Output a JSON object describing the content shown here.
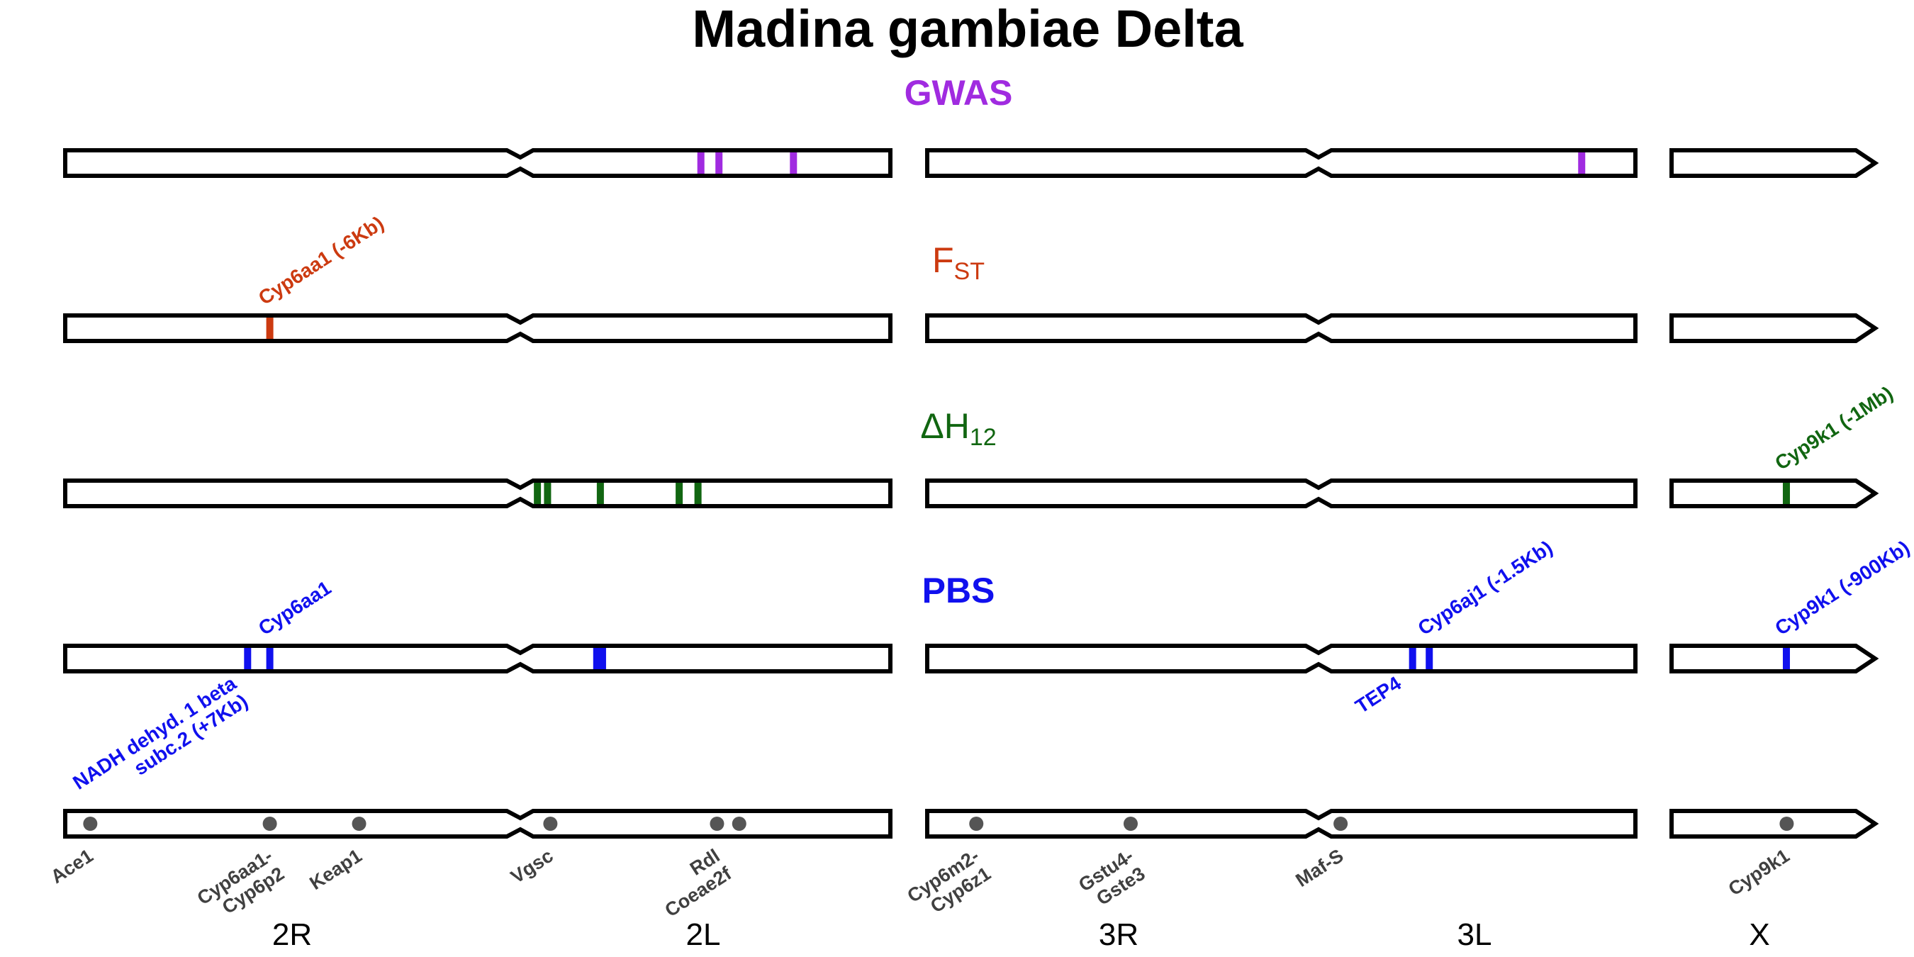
{
  "title": "Madina gambiae Delta",
  "chromosome_arms": [
    "2R",
    "2L",
    "3R",
    "3L",
    "X"
  ],
  "tracks": [
    {
      "id": "gwas",
      "label": "GWAS",
      "label_sub": "",
      "label_bold": true,
      "color": "#a02be0",
      "markers": [
        {
          "arm": "2L",
          "pos_mb": 23.2
        },
        {
          "arm": "2L",
          "pos_mb": 25.7
        },
        {
          "arm": "2L",
          "pos_mb": 36.0
        },
        {
          "arm": "3L",
          "pos_mb": 34.5
        }
      ],
      "hit_labels": []
    },
    {
      "id": "fst",
      "label": "F",
      "label_sub": "ST",
      "label_bold": false,
      "color": "#cc3a10",
      "markers": [
        {
          "arm": "2R",
          "pos_mb": 28.49
        }
      ],
      "hit_labels": [
        {
          "text": "Cyp6aa1 (-6Kb)",
          "arm": "2R",
          "pos_mb": 28.49,
          "side": "above"
        }
      ]
    },
    {
      "id": "h12",
      "label": "ΔH",
      "label_sub": "12",
      "label_bold": false,
      "color": "#116611",
      "markers": [
        {
          "arm": "2L",
          "pos_mb": 0.6
        },
        {
          "arm": "2L",
          "pos_mb": 2.0
        },
        {
          "arm": "2L",
          "pos_mb": 9.3
        },
        {
          "arm": "2L",
          "pos_mb": 20.2
        },
        {
          "arm": "2L",
          "pos_mb": 22.8
        },
        {
          "arm": "X",
          "pos_mb": 15.2
        }
      ],
      "hit_labels": [
        {
          "text": "Cyp9k1 (-1Mb)",
          "arm": "X",
          "pos_mb": 15.2,
          "side": "above"
        }
      ]
    },
    {
      "id": "pbs",
      "label": "PBS",
      "label_sub": "",
      "label_bold": true,
      "color": "#1010ee",
      "markers": [
        {
          "arm": "2R",
          "pos_mb": 25.4
        },
        {
          "arm": "2R",
          "pos_mb": 28.49
        },
        {
          "arm": "2L",
          "pos_mb": 8.8
        },
        {
          "arm": "2L",
          "pos_mb": 9.2
        },
        {
          "arm": "2L",
          "pos_mb": 9.6
        },
        {
          "arm": "3L",
          "pos_mb": 11.2
        },
        {
          "arm": "3L",
          "pos_mb": 13.5
        },
        {
          "arm": "X",
          "pos_mb": 15.2
        }
      ],
      "hit_labels": [
        {
          "text": "Cyp6aa1",
          "arm": "2R",
          "pos_mb": 28.49,
          "side": "above"
        },
        {
          "text": "Cyp6aj1 (-1.5Kb)",
          "arm": "3L",
          "pos_mb": 13.5,
          "side": "above"
        },
        {
          "text": "Cyp9k1 (-900Kb)",
          "arm": "X",
          "pos_mb": 15.2,
          "side": "above"
        },
        {
          "text": "NADH dehyd. 1 beta subc.2 (+7Kb)",
          "arm": "2R",
          "pos_mb": 25.4,
          "side": "below",
          "lines": [
            "NADH dehyd. 1 beta",
            "subc.2 (+7Kb)"
          ]
        },
        {
          "text": "TEP4",
          "arm": "3L",
          "pos_mb": 11.2,
          "side": "below"
        }
      ]
    }
  ],
  "reference_genes": [
    {
      "name": "Ace1",
      "arm": "2R",
      "pos_mb": 3.49,
      "lines": [
        "Ace1"
      ]
    },
    {
      "name": "Cyp6aa1-Cyp6p2",
      "arm": "2R",
      "pos_mb": 28.49,
      "lines": [
        "Cyp6aa1-",
        "Cyp6p2"
      ]
    },
    {
      "name": "Keap1",
      "arm": "2R",
      "pos_mb": 40.92,
      "lines": [
        "Keap1"
      ]
    },
    {
      "name": "Vgsc",
      "arm": "2L",
      "pos_mb": 2.39,
      "lines": [
        "Vgsc"
      ]
    },
    {
      "name": "Rdl Coeae2f",
      "arm": "2L",
      "pos_mb": 25.43,
      "lines": [
        "Rdl",
        "Coeae2f"
      ]
    },
    {
      "name": "Coeae2f-dot",
      "arm": "2L",
      "pos_mb": 28.5,
      "lines": []
    },
    {
      "name": "Cyp6m2-Cyp6z1",
      "arm": "3R",
      "pos_mb": 6.9,
      "lines": [
        "Cyp6m2-",
        "Cyp6z1"
      ]
    },
    {
      "name": "Gstu4-Gste3",
      "arm": "3R",
      "pos_mb": 28.59,
      "lines": [
        "Gstu4-",
        "Gste3"
      ]
    },
    {
      "name": "Maf-S",
      "arm": "3L",
      "pos_mb": 1.28,
      "lines": [
        "Maf-S"
      ]
    },
    {
      "name": "Cyp9k1",
      "arm": "X",
      "pos_mb": 15.24,
      "lines": [
        "Cyp9k1"
      ]
    }
  ],
  "gene_dot_color": "#555555"
}
